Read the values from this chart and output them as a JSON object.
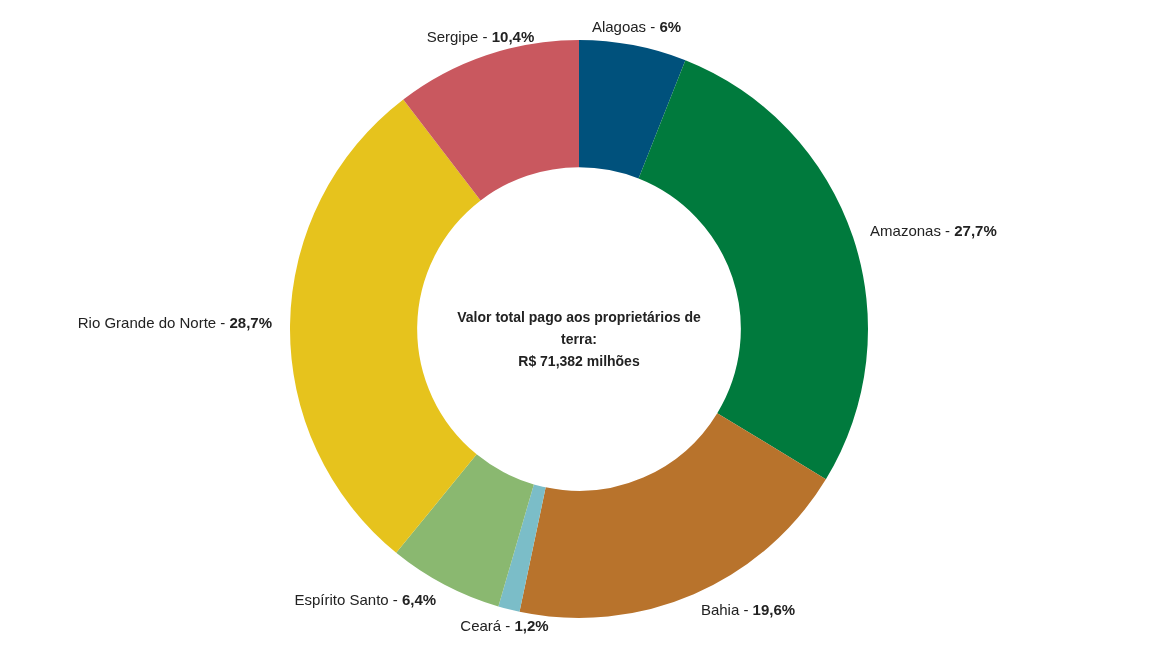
{
  "chart_data": {
    "type": "donut",
    "categories": [
      "Alagoas -",
      "Amazonas -",
      "Bahia -",
      "Ceará -",
      "Espírito Santo -",
      "Rio Grande do Norte -",
      "Sergipe -"
    ],
    "values": [
      6,
      27.7,
      19.6,
      1.2,
      6.4,
      28.7,
      10.4
    ],
    "value_labels": [
      "6%",
      "27,7%",
      "19,6%",
      "1,2%",
      "6,4%",
      "28,7%",
      "10,4%"
    ],
    "colors": [
      "#00517c",
      "#007a3d",
      "#b8732c",
      "#7bbdc8",
      "#8ab870",
      "#e6c31d",
      "#c9585f"
    ],
    "annotations": [
      "Valor total pago aos proprietários de terra:",
      "R$ 71,382 milhões"
    ],
    "legend": false
  }
}
